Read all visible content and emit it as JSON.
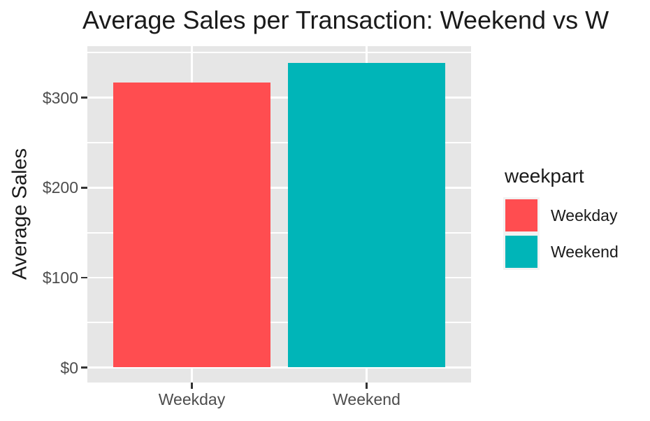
{
  "figure": {
    "title": "Average Sales per Transaction: Weekend vs W",
    "y_axis": {
      "title": "Average Sales",
      "tick_labels": [
        "$0",
        "$100",
        "$200",
        "$300"
      ]
    },
    "x_axis": {
      "tick_labels": [
        "Weekday",
        "Weekend"
      ]
    },
    "legend": {
      "title": "weekpart",
      "items": [
        {
          "label": "Weekday",
          "color": "#FF4D50"
        },
        {
          "label": "Weekend",
          "color": "#00B5B8"
        }
      ]
    },
    "colors": {
      "panel_background": "#E6E6E6",
      "gridline": "#FFFFFF",
      "axis_text": "#4D4D4D",
      "tick_mark": "#333333",
      "title_text": "#1A1A1A",
      "outer_background": "#FFFFFF"
    }
  },
  "chart_data": {
    "type": "bar",
    "title": "Average Sales per Transaction: Weekend vs W",
    "categories": [
      "Weekday",
      "Weekend"
    ],
    "values": [
      317,
      339
    ],
    "series": [
      {
        "name": "Weekday",
        "value": 317,
        "color": "#FF4D50"
      },
      {
        "name": "Weekend",
        "value": 339,
        "color": "#00B5B8"
      }
    ],
    "xlabel": "",
    "ylabel": "Average Sales",
    "yticks": [
      0,
      100,
      200,
      300
    ],
    "ytick_labels": [
      "$0",
      "$100",
      "$200",
      "$300"
    ],
    "yticks_minor": [
      50,
      150,
      250,
      350
    ],
    "ylim": [
      -17,
      357
    ],
    "grid": true,
    "legend_title": "weekpart",
    "legend_position": "right"
  }
}
